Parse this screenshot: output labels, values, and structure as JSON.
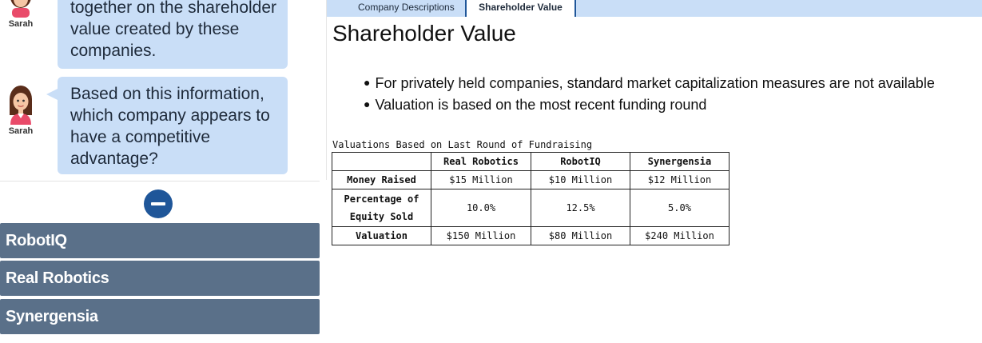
{
  "chat": {
    "messages": [
      {
        "sender": "Sarah",
        "text": "together on the shareholder value created by these companies."
      },
      {
        "sender": "Sarah",
        "text": "Based on this information, which company appears to have a competitive advantage?"
      }
    ]
  },
  "accordion": {
    "items": [
      {
        "label": "RobotIQ"
      },
      {
        "label": "Real Robotics"
      },
      {
        "label": "Synergensia"
      }
    ]
  },
  "tabs": [
    {
      "label": "Company Descriptions",
      "active": false
    },
    {
      "label": "Shareholder Value",
      "active": true
    }
  ],
  "content": {
    "title": "Shareholder Value",
    "bullets": [
      "For privately held companies, standard market capitalization measures are not available",
      "Valuation is based on the most recent funding round"
    ],
    "table": {
      "caption": "Valuations Based on Last Round of Fundraising",
      "columns": [
        "",
        "Real Robotics",
        "RobotIQ",
        "Synergensia"
      ],
      "rows": [
        {
          "label": "Money Raised",
          "values": [
            "$15 Million",
            "$10 Million",
            "$12 Million"
          ]
        },
        {
          "label": "Percentage of Equity Sold",
          "values": [
            "10.0%",
            "12.5%",
            "5.0%"
          ]
        },
        {
          "label": "Valuation",
          "values": [
            "$150 Million",
            "$80 Million",
            "$240 Million"
          ]
        }
      ]
    }
  },
  "colors": {
    "bubble": "#c9def7",
    "accordion": "#5a7089",
    "accent": "#1f5699"
  }
}
